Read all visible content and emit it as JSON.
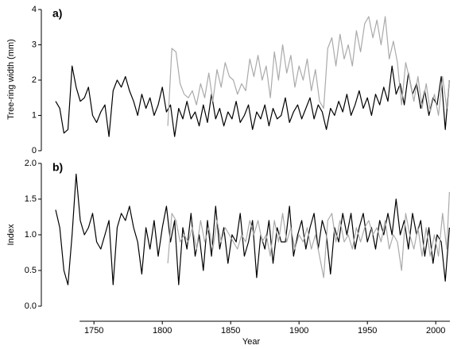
{
  "chart_data": [
    {
      "type": "line",
      "panel_label": "a)",
      "ylabel": "Tree-ring width (mm)",
      "xlim": [
        1715,
        2015
      ],
      "ylim": [
        0,
        4
      ],
      "yticks": [
        0,
        1,
        2,
        3,
        4
      ],
      "series": [
        {
          "color": "#000000",
          "x": [
            1722,
            1725,
            1728,
            1731,
            1734,
            1737,
            1740,
            1743,
            1746,
            1749,
            1752,
            1755,
            1758,
            1761,
            1764,
            1767,
            1770,
            1773,
            1776,
            1779,
            1782,
            1785,
            1788,
            1791,
            1794,
            1797,
            1800,
            1803,
            1806,
            1809,
            1812,
            1815,
            1818,
            1821,
            1824,
            1827,
            1830,
            1833,
            1836,
            1839,
            1842,
            1845,
            1848,
            1851,
            1854,
            1857,
            1860,
            1863,
            1866,
            1869,
            1872,
            1875,
            1878,
            1881,
            1884,
            1887,
            1890,
            1893,
            1896,
            1899,
            1902,
            1905,
            1908,
            1911,
            1914,
            1917,
            1920,
            1923,
            1926,
            1929,
            1932,
            1935,
            1938,
            1941,
            1944,
            1947,
            1950,
            1953,
            1956,
            1959,
            1962,
            1965,
            1968,
            1971,
            1974,
            1977,
            1980,
            1983,
            1986,
            1989,
            1992,
            1995,
            1998,
            2001,
            2004,
            2007,
            2010
          ],
          "values": [
            1.4,
            1.2,
            0.5,
            0.6,
            2.4,
            1.8,
            1.4,
            1.5,
            1.8,
            1.0,
            0.8,
            1.1,
            1.3,
            0.4,
            1.7,
            2.0,
            1.8,
            2.1,
            1.7,
            1.4,
            1.0,
            1.6,
            1.2,
            1.5,
            1.0,
            1.3,
            1.8,
            1.1,
            1.3,
            0.4,
            1.2,
            0.9,
            1.4,
            0.9,
            1.1,
            0.7,
            1.3,
            0.8,
            1.6,
            0.9,
            1.2,
            0.7,
            1.1,
            0.9,
            1.4,
            0.8,
            1.0,
            1.3,
            0.6,
            1.1,
            0.9,
            1.3,
            0.7,
            1.2,
            0.9,
            1.0,
            1.5,
            0.8,
            1.1,
            1.3,
            0.9,
            1.2,
            1.5,
            0.9,
            1.3,
            1.1,
            0.6,
            1.2,
            1.0,
            1.4,
            1.1,
            1.6,
            1.0,
            1.3,
            1.7,
            1.2,
            1.5,
            1.0,
            1.6,
            1.3,
            1.8,
            1.4,
            2.4,
            1.6,
            1.9,
            1.3,
            2.2,
            1.6,
            1.9,
            1.2,
            1.7,
            1.0,
            1.5,
            1.3,
            2.1,
            0.6,
            2.0
          ]
        },
        {
          "color": "#aaaaaa",
          "x": [
            1804,
            1807,
            1810,
            1813,
            1816,
            1819,
            1822,
            1825,
            1828,
            1831,
            1834,
            1837,
            1840,
            1843,
            1846,
            1849,
            1852,
            1855,
            1858,
            1861,
            1864,
            1867,
            1870,
            1873,
            1876,
            1879,
            1882,
            1885,
            1888,
            1891,
            1894,
            1897,
            1900,
            1903,
            1906,
            1909,
            1912,
            1915,
            1918,
            1921,
            1924,
            1927,
            1930,
            1933,
            1936,
            1939,
            1942,
            1945,
            1948,
            1951,
            1954,
            1957,
            1960,
            1963,
            1966,
            1969,
            1972,
            1975,
            1978,
            1981,
            1984,
            1987,
            1990,
            1993,
            1996,
            1999,
            2002,
            2005,
            2008,
            2010
          ],
          "values": [
            0.7,
            2.9,
            2.8,
            1.9,
            1.6,
            1.5,
            1.7,
            1.3,
            1.9,
            1.5,
            2.2,
            1.4,
            2.3,
            1.8,
            2.5,
            2.1,
            2.0,
            1.6,
            1.9,
            1.7,
            2.6,
            2.1,
            2.7,
            2.0,
            2.4,
            1.5,
            2.8,
            2.0,
            3.0,
            2.2,
            2.7,
            1.8,
            2.4,
            2.0,
            2.6,
            1.7,
            2.3,
            1.4,
            1.2,
            2.9,
            3.2,
            2.4,
            3.3,
            2.6,
            3.0,
            2.4,
            3.4,
            2.8,
            3.6,
            3.8,
            3.2,
            3.7,
            3.0,
            3.8,
            2.6,
            3.1,
            2.5,
            1.3,
            2.5,
            2.0,
            1.4,
            2.1,
            1.2,
            1.9,
            1.1,
            1.6,
            1.0,
            2.1,
            1.2,
            2.0
          ]
        }
      ]
    },
    {
      "type": "line",
      "panel_label": "b)",
      "ylabel": "Index",
      "xlabel": "Year",
      "xlim": [
        1715,
        2015
      ],
      "ylim": [
        0,
        2
      ],
      "yticks": [
        {
          "value": 0,
          "label": "0.0"
        },
        0.5,
        {
          "value": 1,
          "label": "1.0"
        },
        1.5,
        {
          "value": 2,
          "label": "2.0"
        }
      ],
      "xticks": [
        1750,
        1800,
        1850,
        1900,
        1950,
        2000
      ],
      "series": [
        {
          "color": "#000000",
          "x": [
            1722,
            1725,
            1728,
            1731,
            1734,
            1737,
            1740,
            1743,
            1746,
            1749,
            1752,
            1755,
            1758,
            1761,
            1764,
            1767,
            1770,
            1773,
            1776,
            1779,
            1782,
            1785,
            1788,
            1791,
            1794,
            1797,
            1800,
            1803,
            1806,
            1809,
            1812,
            1815,
            1818,
            1821,
            1824,
            1827,
            1830,
            1833,
            1836,
            1839,
            1842,
            1845,
            1848,
            1851,
            1854,
            1857,
            1860,
            1863,
            1866,
            1869,
            1872,
            1875,
            1878,
            1881,
            1884,
            1887,
            1890,
            1893,
            1896,
            1899,
            1902,
            1905,
            1908,
            1911,
            1914,
            1917,
            1920,
            1923,
            1926,
            1929,
            1932,
            1935,
            1938,
            1941,
            1944,
            1947,
            1950,
            1953,
            1956,
            1959,
            1962,
            1965,
            1968,
            1971,
            1974,
            1977,
            1980,
            1983,
            1986,
            1989,
            1992,
            1995,
            1998,
            2001,
            2004,
            2007,
            2010
          ],
          "values": [
            1.35,
            1.1,
            0.5,
            0.3,
            1.0,
            1.85,
            1.2,
            1.0,
            1.1,
            1.3,
            0.9,
            0.8,
            1.0,
            1.2,
            0.3,
            1.1,
            1.3,
            1.2,
            1.4,
            1.1,
            0.9,
            0.45,
            1.1,
            0.8,
            1.2,
            0.7,
            1.1,
            1.4,
            0.9,
            1.2,
            0.3,
            1.1,
            0.8,
            1.3,
            0.7,
            1.0,
            0.5,
            1.2,
            0.7,
            1.4,
            0.8,
            1.1,
            0.6,
            1.0,
            0.9,
            1.3,
            0.7,
            0.9,
            1.2,
            0.4,
            1.0,
            0.8,
            1.2,
            0.6,
            1.1,
            0.9,
            0.9,
            1.4,
            0.7,
            1.0,
            1.2,
            0.8,
            1.1,
            1.3,
            0.8,
            1.2,
            1.0,
            0.45,
            1.1,
            0.9,
            1.3,
            1.0,
            1.3,
            0.8,
            1.1,
            1.3,
            0.9,
            1.1,
            0.8,
            1.2,
            1.0,
            1.3,
            1.0,
            1.5,
            1.0,
            1.2,
            0.8,
            1.3,
            1.0,
            1.2,
            0.7,
            1.1,
            0.6,
            1.0,
            0.9,
            0.35,
            1.1
          ]
        },
        {
          "color": "#aaaaaa",
          "x": [
            1804,
            1807,
            1810,
            1813,
            1816,
            1819,
            1822,
            1825,
            1828,
            1831,
            1834,
            1837,
            1840,
            1843,
            1846,
            1849,
            1852,
            1855,
            1858,
            1861,
            1864,
            1867,
            1870,
            1873,
            1876,
            1879,
            1882,
            1885,
            1888,
            1891,
            1894,
            1897,
            1900,
            1903,
            1906,
            1909,
            1912,
            1915,
            1918,
            1921,
            1924,
            1927,
            1930,
            1933,
            1936,
            1939,
            1942,
            1945,
            1948,
            1951,
            1954,
            1957,
            1960,
            1963,
            1966,
            1969,
            1972,
            1975,
            1978,
            1981,
            1984,
            1987,
            1990,
            1993,
            1996,
            1999,
            2002,
            2005,
            2008,
            2010
          ],
          "values": [
            0.6,
            1.3,
            1.2,
            0.9,
            1.0,
            0.9,
            1.1,
            0.8,
            1.2,
            0.9,
            1.1,
            0.8,
            1.2,
            0.9,
            1.1,
            1.0,
            0.9,
            0.8,
            1.0,
            0.9,
            1.2,
            1.0,
            1.2,
            0.9,
            1.0,
            0.7,
            1.2,
            0.9,
            1.3,
            0.9,
            1.1,
            0.8,
            1.0,
            0.9,
            1.1,
            0.8,
            1.0,
            0.7,
            0.4,
            1.2,
            1.3,
            0.9,
            1.2,
            0.9,
            1.0,
            0.8,
            1.1,
            0.9,
            1.1,
            1.2,
            1.0,
            1.1,
            0.9,
            1.2,
            0.8,
            1.0,
            0.9,
            0.5,
            1.3,
            1.0,
            0.8,
            1.1,
            0.7,
            1.1,
            0.7,
            1.0,
            0.7,
            1.3,
            0.8,
            1.6
          ]
        }
      ]
    }
  ]
}
